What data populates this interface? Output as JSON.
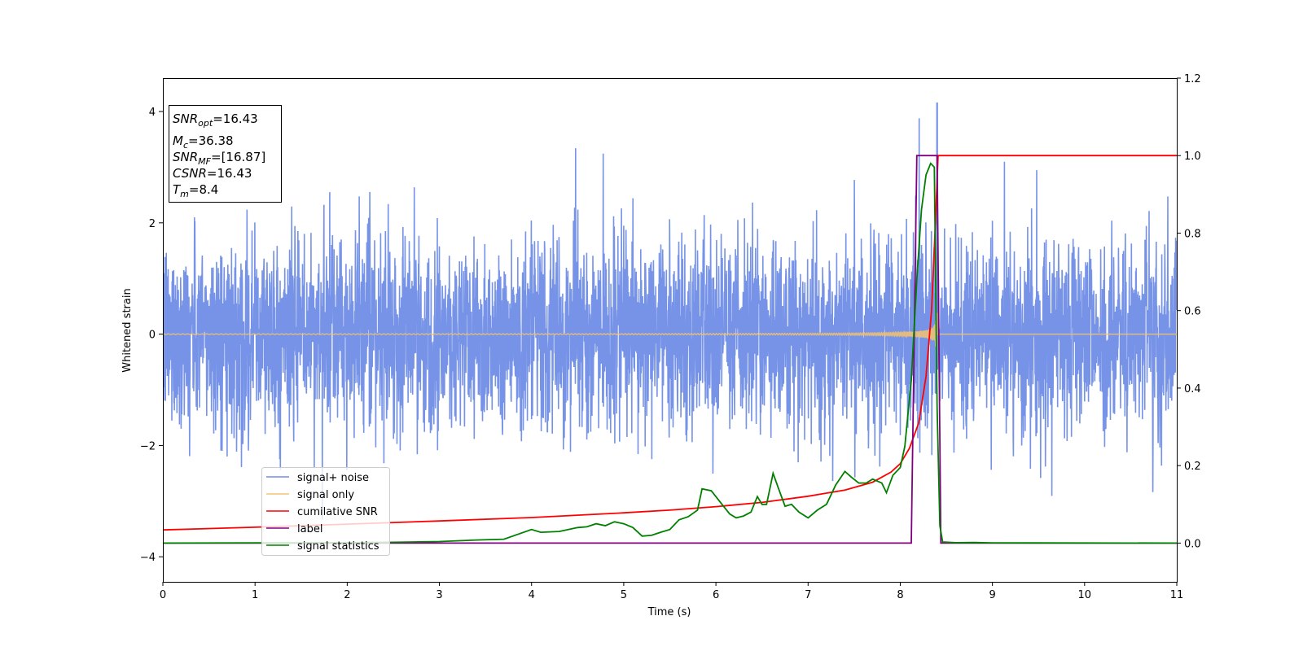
{
  "chart_data": {
    "type": "line",
    "xlabel": "Time (s)",
    "ylabel": "Whitened strain",
    "xlim": [
      0,
      11
    ],
    "ylim": [
      -4.45,
      4.6
    ],
    "ylim_right": [
      -0.1,
      1.2
    ],
    "x_ticks": [
      "0",
      "1",
      "2",
      "3",
      "4",
      "5",
      "6",
      "7",
      "8",
      "9",
      "10",
      "11"
    ],
    "y_ticks": [
      "−4",
      "−2",
      "0",
      "2",
      "4"
    ],
    "y_ticks_right": [
      "0.0",
      "0.2",
      "0.4",
      "0.6",
      "0.8",
      "1.0",
      "1.2"
    ],
    "grid": false,
    "legend_position": "lower-left",
    "annotation": {
      "snr_opt": {
        "sym": "SNR",
        "sub": "opt",
        "value": "=16.43"
      },
      "mc": {
        "sym": "M",
        "sub": "c",
        "value": "=36.38"
      },
      "snr_mf": {
        "sym": "SNR",
        "sub": "MF",
        "value": "=[16.87]"
      },
      "csnr": {
        "sym": "CSNR",
        "value": "=16.43"
      },
      "tm": {
        "sym": "T",
        "sub": "m",
        "value": "=8.4"
      }
    },
    "series": [
      {
        "name": "signal+ noise",
        "axis": "left",
        "color": "#6f8de6",
        "description_values": {
          "noise_std": 0.85,
          "peak_at_s": 8.4
        }
      },
      {
        "name": "signal only",
        "axis": "left",
        "color": "#f5c270",
        "chirp": {
          "start_s": 0,
          "merger_s": 8.4,
          "peak_amplitude": 1.5
        }
      },
      {
        "name": "cumilative SNR",
        "axis": "right",
        "color": "#ff0000",
        "x": [
          0,
          1,
          2,
          3,
          4,
          5,
          5.5,
          6,
          6.5,
          7,
          7.4,
          7.7,
          7.9,
          8.0,
          8.1,
          8.2,
          8.28,
          8.34,
          8.38,
          8.41,
          8.42,
          11
        ],
        "y": [
          0.034,
          0.041,
          0.049,
          0.057,
          0.066,
          0.078,
          0.085,
          0.094,
          0.105,
          0.121,
          0.137,
          0.157,
          0.183,
          0.205,
          0.245,
          0.31,
          0.43,
          0.6,
          0.82,
          1.0,
          1.0,
          1.0
        ]
      },
      {
        "name": "label",
        "axis": "right",
        "color": "#800080",
        "x": [
          0,
          8.12,
          8.18,
          8.4,
          8.44,
          11
        ],
        "y": [
          0,
          0,
          1.0,
          1.0,
          0,
          0
        ]
      },
      {
        "name": "signal statistics",
        "axis": "right",
        "color": "#008000",
        "x": [
          0,
          1,
          2,
          2.5,
          3,
          3.4,
          3.7,
          4.0,
          4.1,
          4.3,
          4.5,
          4.6,
          4.7,
          4.8,
          4.9,
          5.0,
          5.1,
          5.2,
          5.3,
          5.4,
          5.5,
          5.6,
          5.7,
          5.8,
          5.85,
          5.95,
          6.05,
          6.15,
          6.22,
          6.3,
          6.38,
          6.45,
          6.5,
          6.55,
          6.62,
          6.68,
          6.75,
          6.82,
          6.9,
          7.0,
          7.1,
          7.2,
          7.3,
          7.4,
          7.47,
          7.55,
          7.63,
          7.7,
          7.8,
          7.85,
          7.92,
          8.0,
          8.05,
          8.12,
          8.18,
          8.23,
          8.28,
          8.33,
          8.37,
          8.4,
          8.43,
          8.46,
          8.6,
          8.8,
          9.0,
          11
        ],
        "y": [
          0,
          0.0005,
          0.001,
          0.002,
          0.004,
          0.008,
          0.01,
          0.035,
          0.028,
          0.03,
          0.04,
          0.042,
          0.05,
          0.045,
          0.055,
          0.05,
          0.04,
          0.018,
          0.02,
          0.028,
          0.035,
          0.06,
          0.068,
          0.085,
          0.14,
          0.135,
          0.105,
          0.075,
          0.065,
          0.07,
          0.08,
          0.12,
          0.1,
          0.1,
          0.18,
          0.14,
          0.095,
          0.1,
          0.08,
          0.065,
          0.085,
          0.1,
          0.15,
          0.185,
          0.17,
          0.155,
          0.155,
          0.165,
          0.155,
          0.13,
          0.175,
          0.195,
          0.25,
          0.42,
          0.68,
          0.86,
          0.95,
          0.98,
          0.97,
          0.35,
          0.045,
          0.003,
          0.001,
          0.0015,
          0.0005,
          0
        ]
      }
    ]
  },
  "legend": {
    "items": [
      {
        "label": "signal+ noise",
        "color": "#6f8de6"
      },
      {
        "label": "signal only",
        "color": "#f5c270"
      },
      {
        "label": "cumilative SNR",
        "color": "#ff0000"
      },
      {
        "label": "label",
        "color": "#800080"
      },
      {
        "label": "signal statistics",
        "color": "#008000"
      }
    ]
  }
}
